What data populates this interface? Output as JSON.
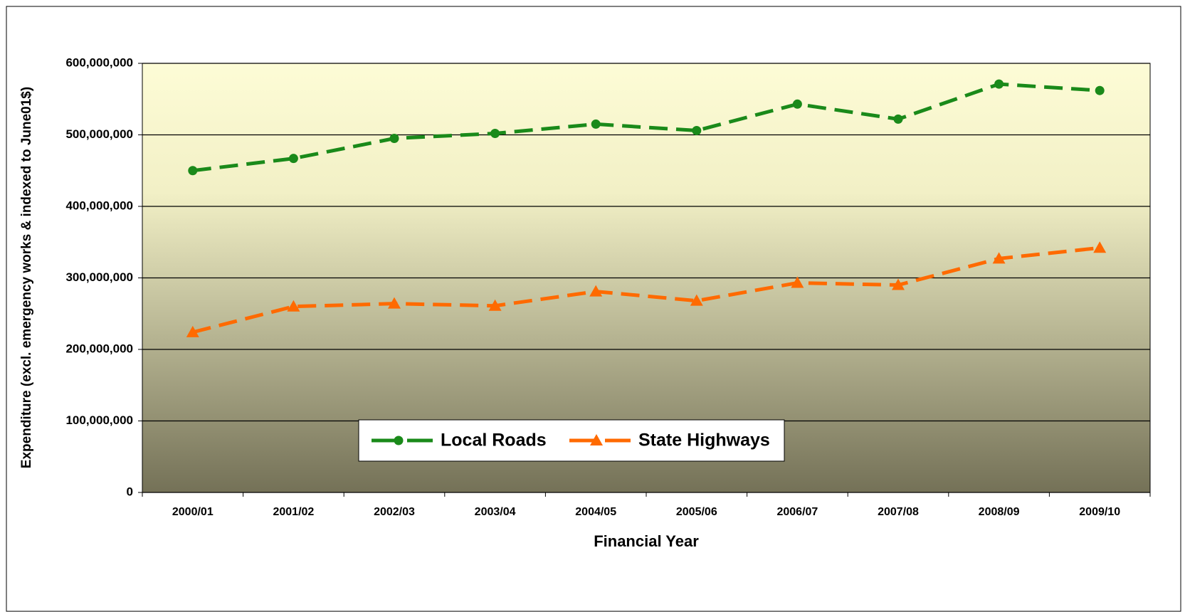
{
  "chart_data": {
    "type": "line",
    "x_label": "Financial Year",
    "y_label": "Expenditure (excl. emergency works & indexed to June01$)",
    "categories": [
      "2000/01",
      "2001/02",
      "2002/03",
      "2003/04",
      "2004/05",
      "2005/06",
      "2006/07",
      "2007/08",
      "2008/09",
      "2009/10"
    ],
    "series": [
      {
        "name": "Local Roads",
        "color": "#1a8a1a",
        "marker": "circle",
        "values": [
          450000000,
          467000000,
          495000000,
          502000000,
          515000000,
          506000000,
          543000000,
          522000000,
          571000000,
          562000000
        ]
      },
      {
        "name": "State Highways",
        "color": "#ff6a00",
        "marker": "triangle",
        "values": [
          224000000,
          260000000,
          264000000,
          261000000,
          281000000,
          268000000,
          293000000,
          290000000,
          327000000,
          342000000
        ]
      }
    ],
    "ylim": [
      0,
      600000000
    ],
    "yticks": [
      0,
      {
        "value": 100000000,
        "label": "100,000,000"
      },
      {
        "value": 200000000,
        "label": "200,000,000"
      },
      {
        "value": 300000000,
        "label": "300,000,000"
      },
      {
        "value": 400000000,
        "label": "400,000,000"
      },
      {
        "value": 500000000,
        "label": "500,000,000"
      },
      {
        "value": 600000000,
        "label": "600,000,000"
      }
    ],
    "grid": true,
    "legend": "bottom"
  }
}
